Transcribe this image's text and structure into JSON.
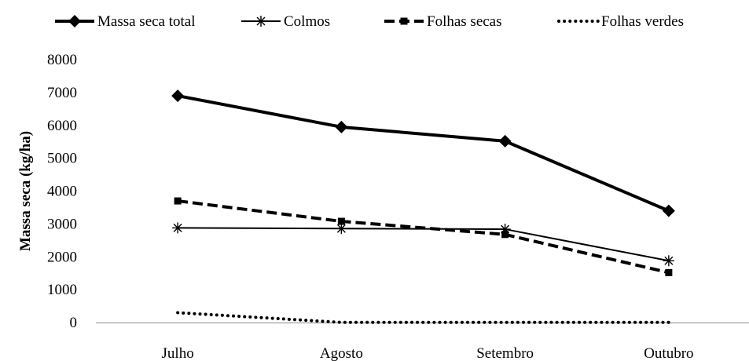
{
  "chart_data": {
    "type": "line",
    "title": "",
    "xlabel": "",
    "ylabel": "Massa seca (kg/ha)",
    "categories": [
      "Julho",
      "Agosto",
      "Setembro",
      "Outubro"
    ],
    "ylim": [
      0,
      8000
    ],
    "yticks": [
      "0",
      "1000",
      "2000",
      "3000",
      "4000",
      "5000",
      "6000",
      "7000",
      "8000"
    ],
    "grid": false,
    "legend_position": "top",
    "series": [
      {
        "name": "Massa seca total",
        "values": [
          6900,
          5950,
          5520,
          3400
        ],
        "line_style": "solid-thick",
        "marker": "diamond",
        "color": "#000000"
      },
      {
        "name": "Colmos",
        "values": [
          2880,
          2860,
          2840,
          1880
        ],
        "line_style": "solid",
        "marker": "asterisk",
        "color": "#000000"
      },
      {
        "name": "Folhas secas",
        "values": [
          3700,
          3080,
          2680,
          1520
        ],
        "line_style": "dashed",
        "marker": "square",
        "color": "#000000"
      },
      {
        "name": "Folhas verdes",
        "values": [
          300,
          5,
          5,
          5
        ],
        "line_style": "dotted",
        "marker": "none",
        "color": "#000000"
      }
    ]
  }
}
